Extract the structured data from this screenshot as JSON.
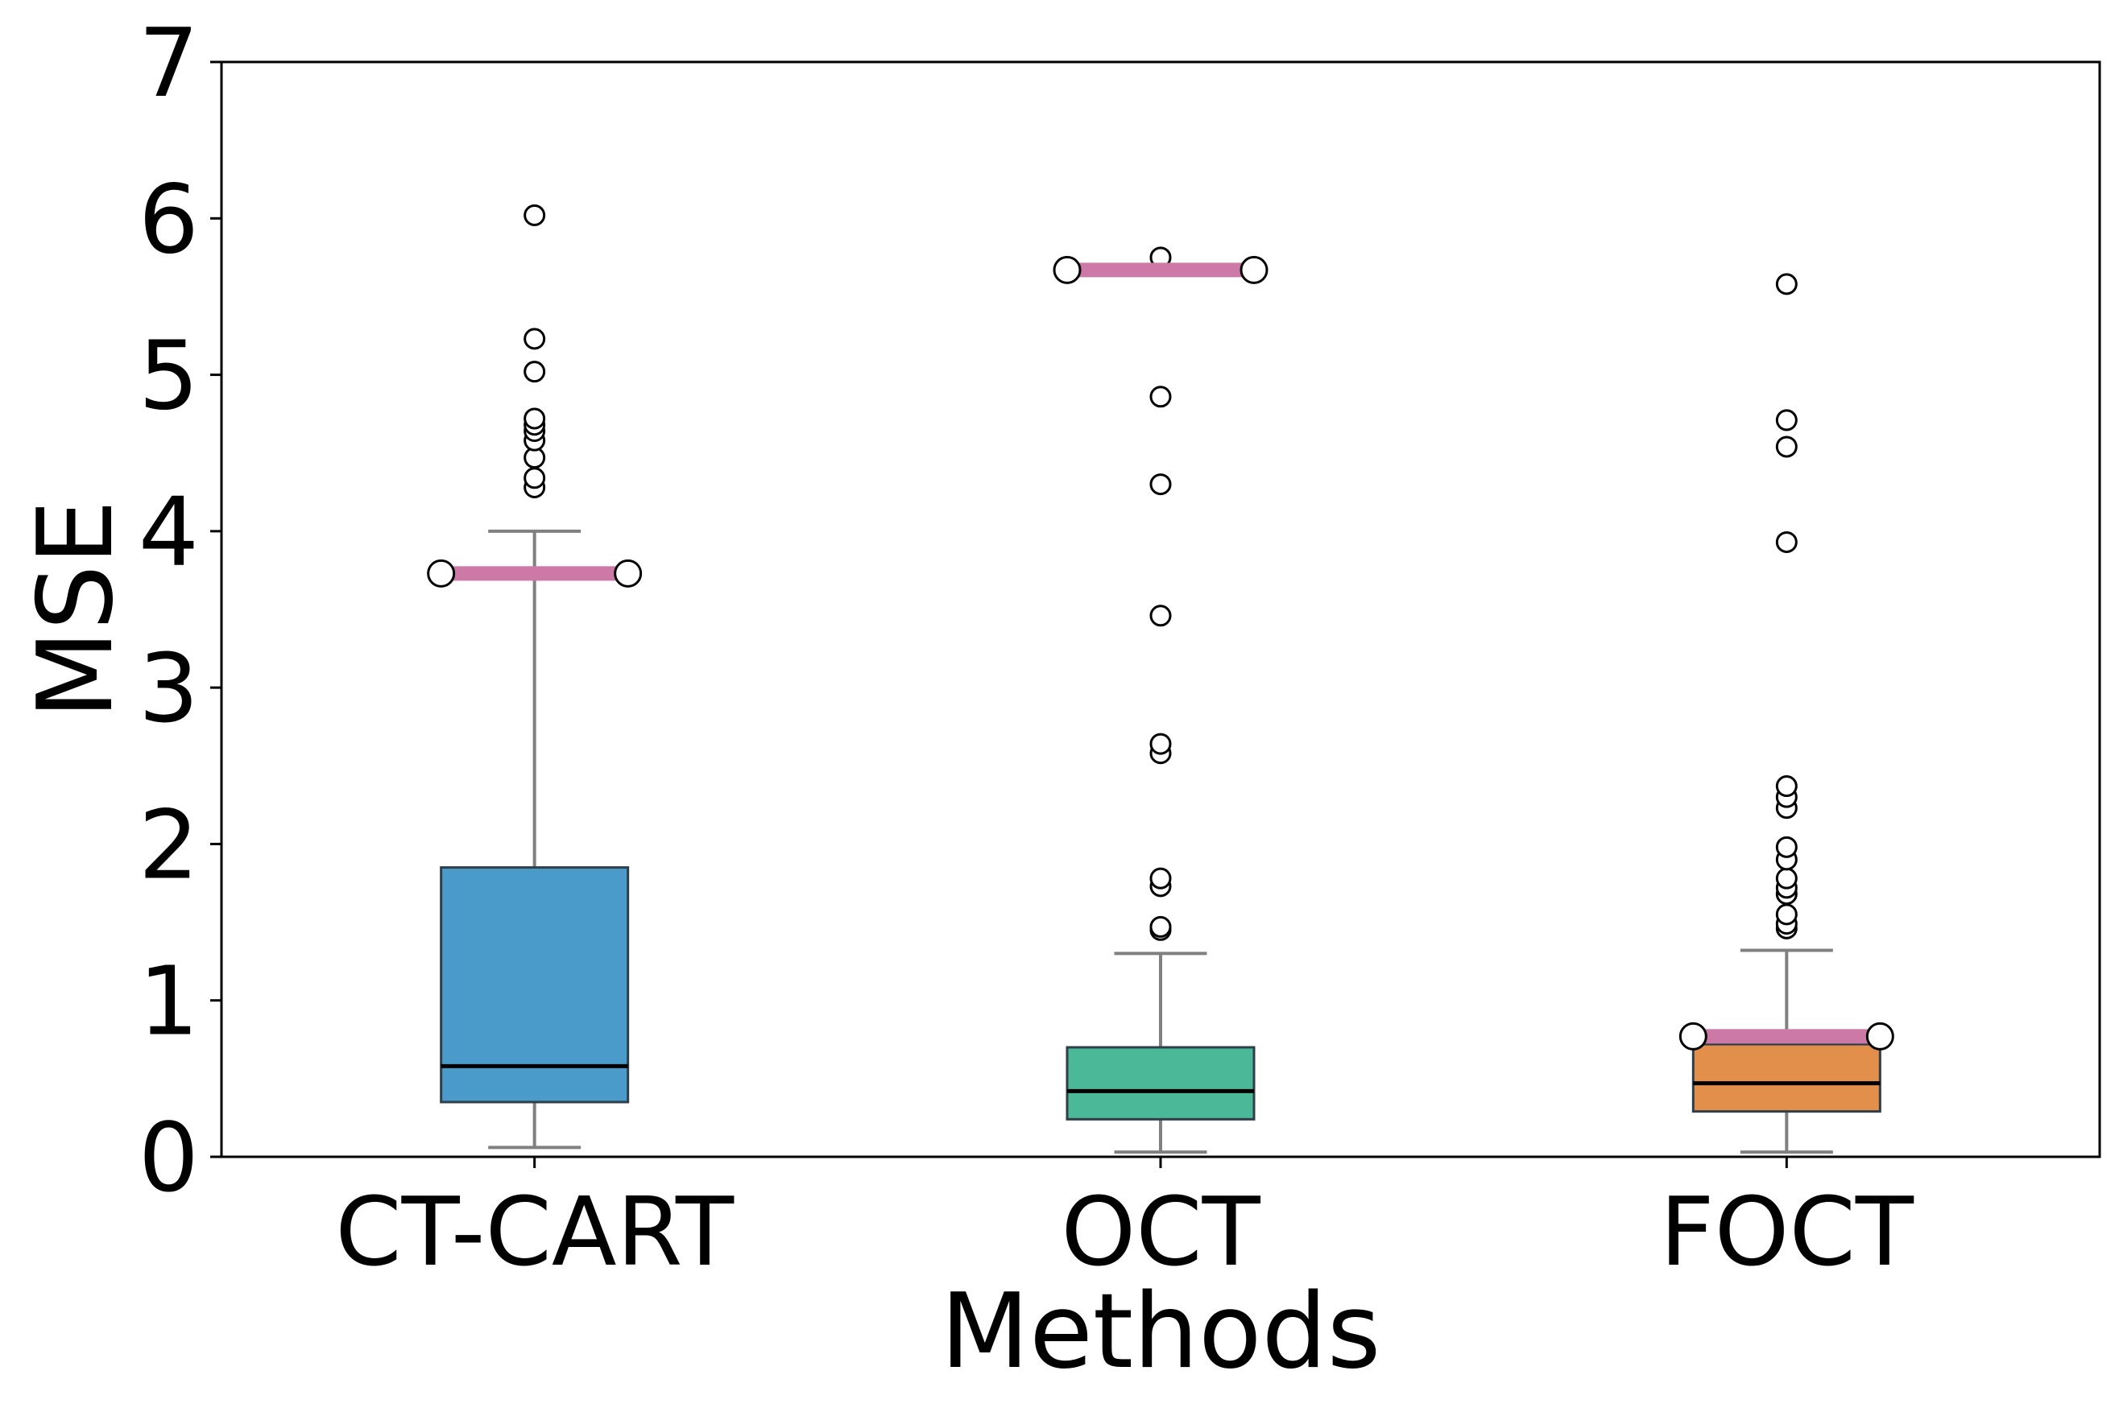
{
  "chart_data": {
    "type": "box",
    "title": "",
    "xlabel": "Methods",
    "ylabel": "MSE",
    "ylim": [
      0,
      7
    ],
    "yticks": [
      0,
      1,
      2,
      3,
      4,
      5,
      6,
      7
    ],
    "grid": false,
    "categories": [
      "CT-CART",
      "OCT",
      "FOCT"
    ],
    "boxes": [
      {
        "category": "CT-CART",
        "color": "#4a9bc9",
        "q1": 0.35,
        "median": 0.58,
        "q3": 1.85,
        "whisker_low": 0.06,
        "whisker_high": 4.0,
        "mean": 3.73,
        "outliers": [
          4.28,
          4.34,
          4.47,
          4.58,
          4.64,
          4.68,
          4.72,
          5.02,
          5.23,
          6.02
        ]
      },
      {
        "category": "OCT",
        "color": "#4bb898",
        "q1": 0.24,
        "median": 0.42,
        "q3": 0.7,
        "whisker_low": 0.03,
        "whisker_high": 1.3,
        "mean": 5.67,
        "outliers": [
          1.45,
          1.47,
          1.73,
          1.78,
          2.58,
          2.64,
          3.46,
          4.3,
          4.86,
          5.75
        ]
      },
      {
        "category": "FOCT",
        "color": "#e28f4b",
        "q1": 0.29,
        "median": 0.47,
        "q3": 0.72,
        "whisker_low": 0.03,
        "whisker_high": 1.32,
        "mean": 0.77,
        "outliers": [
          1.46,
          1.49,
          1.55,
          1.68,
          1.72,
          1.78,
          1.9,
          1.98,
          2.23,
          2.3,
          2.37,
          3.93,
          4.54,
          4.71,
          5.58
        ]
      }
    ],
    "mean_marker_color": "#cc79a7",
    "median_color": "#000000",
    "whisker_color": "#808080"
  }
}
